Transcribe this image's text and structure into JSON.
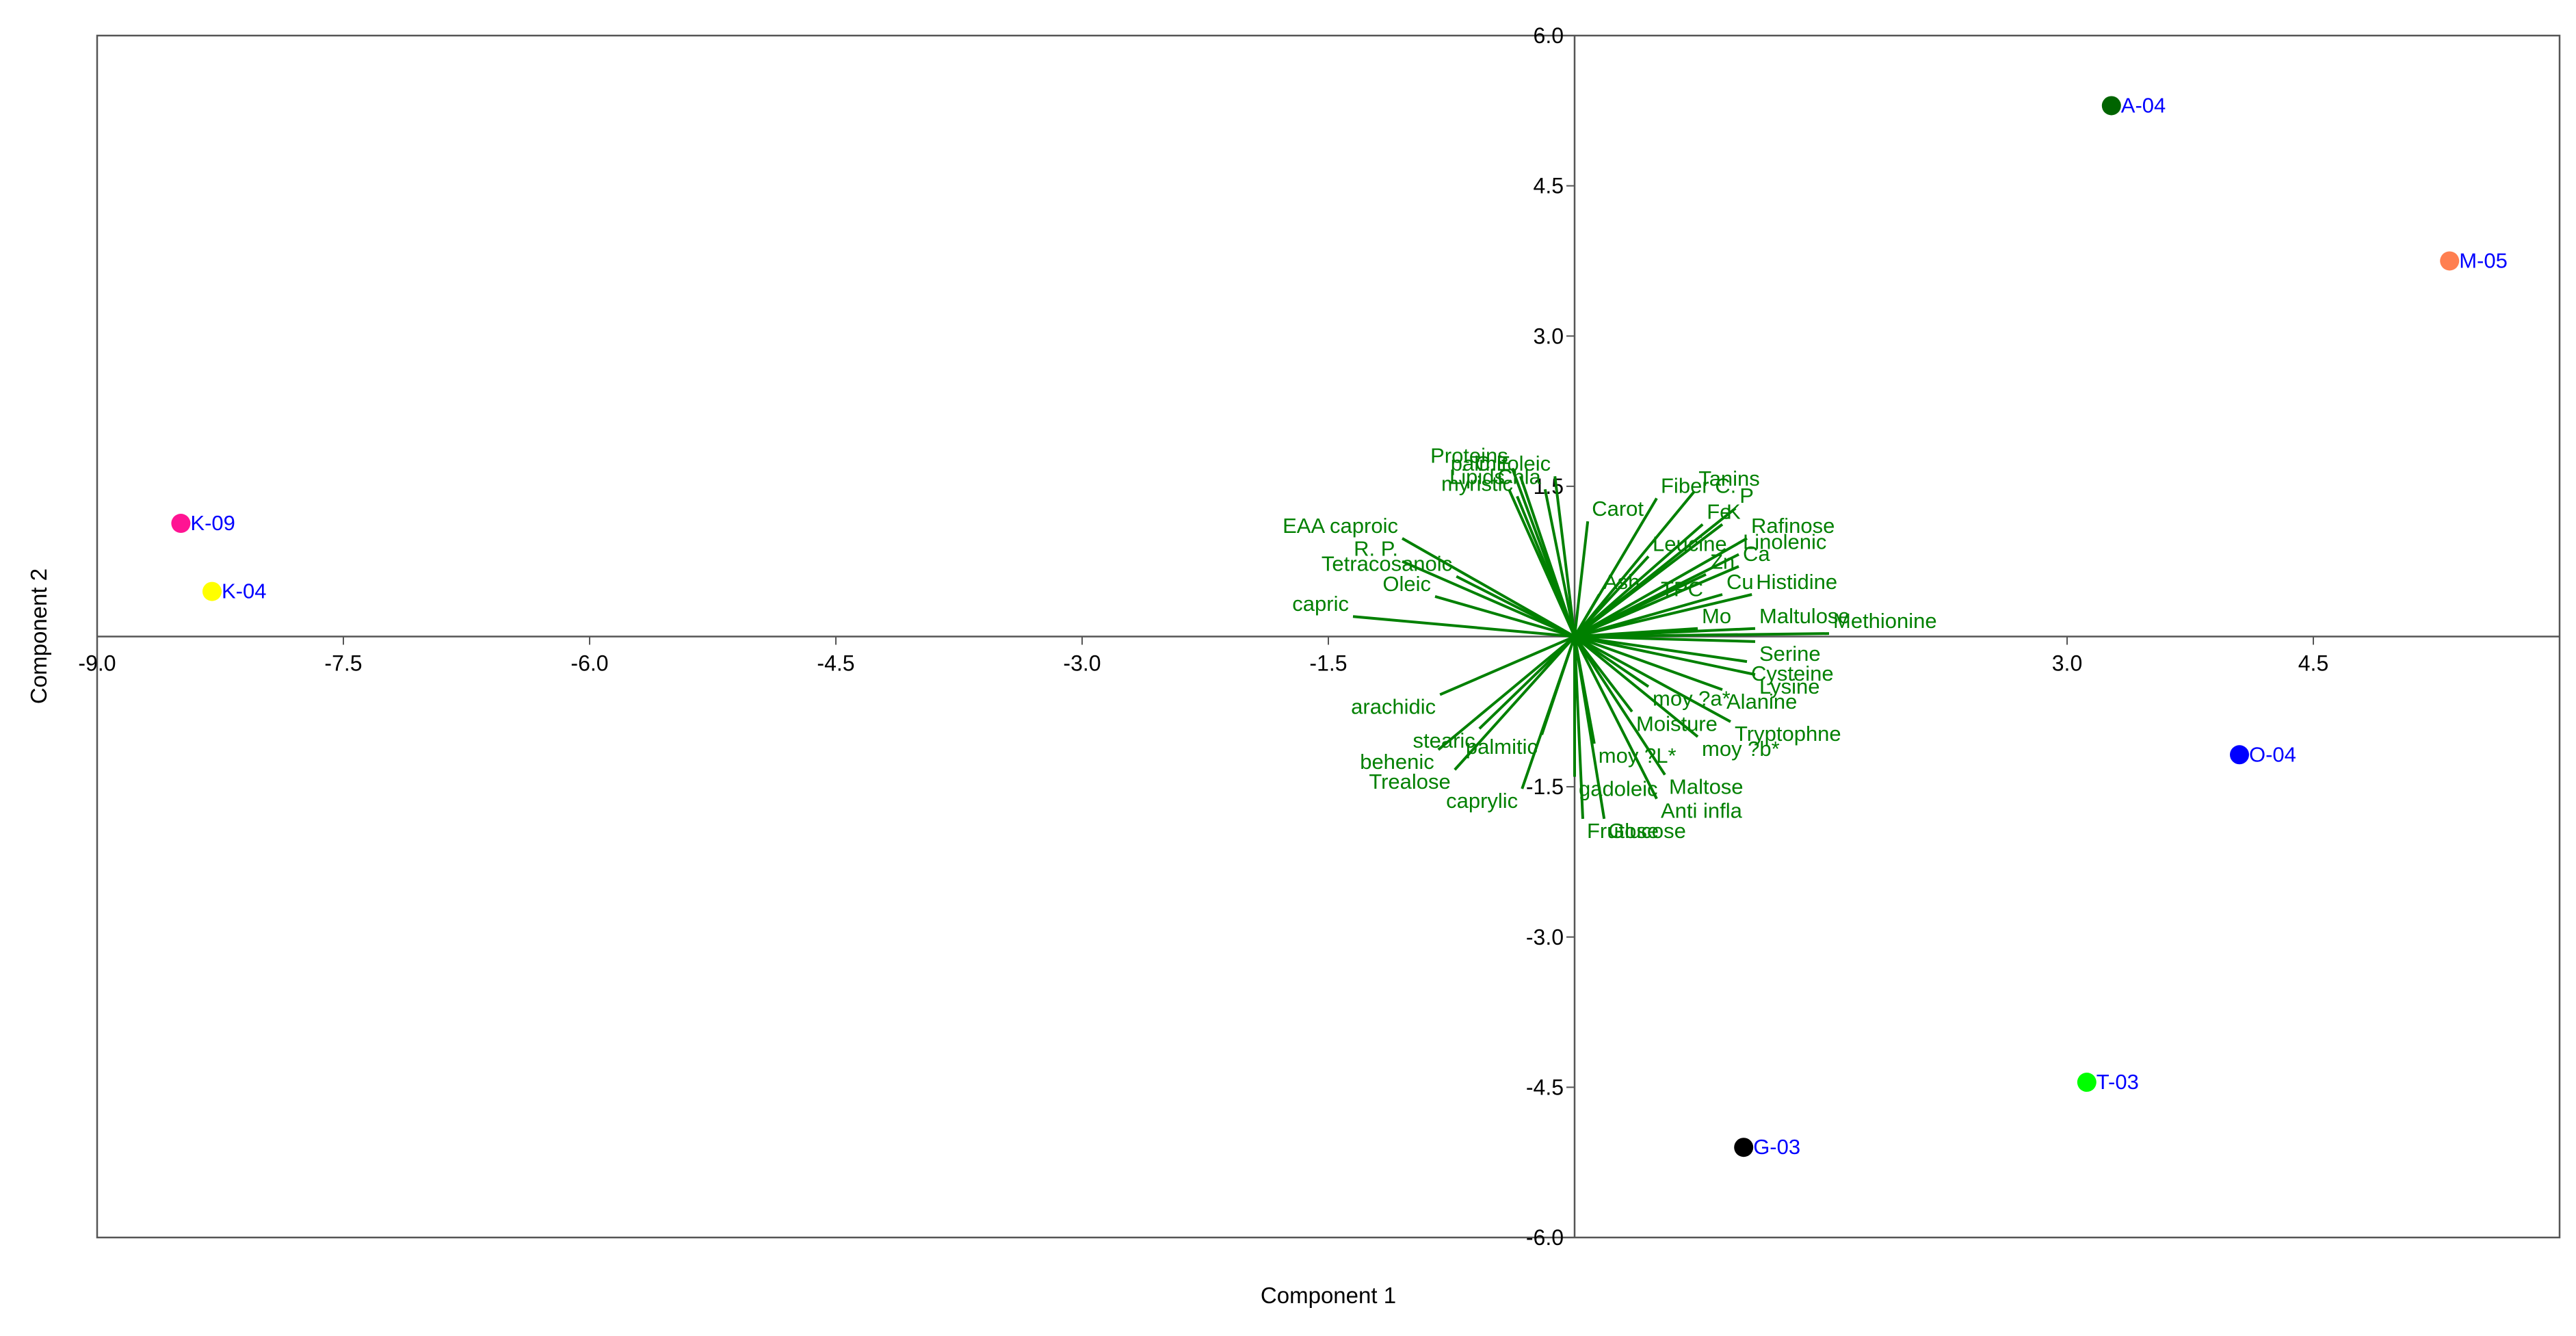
{
  "chart_data": {
    "type": "scatter",
    "subtype": "biplot",
    "xlabel": "Component 1",
    "ylabel": "Component 2",
    "xlim": [
      -9.0,
      6.0
    ],
    "ylim": [
      -6.0,
      6.0
    ],
    "x_ticks": [
      "-9.0",
      "-7.5",
      "-6.0",
      "-4.5",
      "-3.0",
      "-1.5",
      "3.0",
      "4.5"
    ],
    "x_tick_values": [
      -9.0,
      -7.5,
      -6.0,
      -4.5,
      -3.0,
      -1.5,
      3.0,
      4.5
    ],
    "y_ticks": [
      "6.0",
      "4.5",
      "3.0",
      "1.5",
      "-1.5",
      "-3.0",
      "-4.5",
      "-6.0"
    ],
    "y_tick_values": [
      6.0,
      4.5,
      3.0,
      1.5,
      -1.5,
      -3.0,
      -4.5,
      -6.0
    ],
    "grid": false,
    "loading_color": "#008000",
    "point_label_color": "#0000ff",
    "points": [
      {
        "label": "A-04",
        "x": 3.27,
        "y": 5.3,
        "color": "#006400"
      },
      {
        "label": "M-05",
        "x": 5.33,
        "y": 3.75,
        "color": "#ff7f50"
      },
      {
        "label": "K-09",
        "x": -8.49,
        "y": 1.13,
        "color": "#ff1493"
      },
      {
        "label": "K-04",
        "x": -8.3,
        "y": 0.45,
        "color": "#ffff00"
      },
      {
        "label": "O-04",
        "x": 4.05,
        "y": -1.18,
        "color": "#0000ff"
      },
      {
        "label": "T-03",
        "x": 3.12,
        "y": -4.45,
        "color": "#00ff00"
      },
      {
        "label": "G-03",
        "x": 1.03,
        "y": -5.1,
        "color": "#000000"
      }
    ],
    "loadings": [
      {
        "label": "Proteins",
        "x": -0.38,
        "y": 1.68
      },
      {
        "label": "C.E.",
        "x": -0.33,
        "y": 1.6
      },
      {
        "label": "palmitoleic",
        "x": -0.12,
        "y": 1.6
      },
      {
        "label": "Lipids",
        "x": -0.4,
        "y": 1.47
      },
      {
        "label": "Chla",
        "x": -0.18,
        "y": 1.47
      },
      {
        "label": "myristic",
        "x": -0.35,
        "y": 1.4
      },
      {
        "label": "Tanins",
        "x": 0.73,
        "y": 1.45
      },
      {
        "label": "Fiber C.",
        "x": 0.5,
        "y": 1.38
      },
      {
        "label": "P",
        "x": 0.98,
        "y": 1.28
      },
      {
        "label": "Carot",
        "x": 0.08,
        "y": 1.15
      },
      {
        "label": "Fe",
        "x": 0.78,
        "y": 1.12
      },
      {
        "label": "K",
        "x": 0.9,
        "y": 1.12
      },
      {
        "label": "EAA caproic",
        "x": -1.05,
        "y": 0.98
      },
      {
        "label": "Rafinose",
        "x": 1.05,
        "y": 0.98
      },
      {
        "label": "R. P.",
        "x": -1.05,
        "y": 0.75
      },
      {
        "label": "Leucine",
        "x": 0.45,
        "y": 0.8
      },
      {
        "label": "Linolenic",
        "x": 1.0,
        "y": 0.82
      },
      {
        "label": "Tetracosanoic",
        "x": -0.72,
        "y": 0.6
      },
      {
        "label": "Ca",
        "x": 1.0,
        "y": 0.7
      },
      {
        "label": "Zn",
        "x": 0.8,
        "y": 0.62
      },
      {
        "label": "Oleic",
        "x": -0.85,
        "y": 0.4
      },
      {
        "label": "Histidine",
        "x": 1.08,
        "y": 0.42
      },
      {
        "label": "Ash",
        "x": 0.15,
        "y": 0.42
      },
      {
        "label": "Cu",
        "x": 0.9,
        "y": 0.42
      },
      {
        "label": "TPC",
        "x": 0.5,
        "y": 0.35
      },
      {
        "label": "capric",
        "x": -1.35,
        "y": 0.2
      },
      {
        "label": "Mo",
        "x": 0.75,
        "y": 0.08
      },
      {
        "label": "Maltulose",
        "x": 1.1,
        "y": 0.08
      },
      {
        "label": "Methionine",
        "x": 1.55,
        "y": 0.03
      },
      {
        "label": "Serine",
        "x": 1.1,
        "y": -0.05
      },
      {
        "label": "Cysteine",
        "x": 1.05,
        "y": -0.25
      },
      {
        "label": "Lysine",
        "x": 1.1,
        "y": -0.38
      },
      {
        "label": "Alanine",
        "x": 0.9,
        "y": -0.53
      },
      {
        "label": "arachidic",
        "x": -0.82,
        "y": -0.58
      },
      {
        "label": "moy ?a*",
        "x": 0.45,
        "y": -0.5
      },
      {
        "label": "Moisture",
        "x": 0.35,
        "y": -0.75
      },
      {
        "label": "Tryptophne",
        "x": 0.95,
        "y": -0.85
      },
      {
        "label": "stearic",
        "x": -0.58,
        "y": -0.92
      },
      {
        "label": "palmitic",
        "x": -0.2,
        "y": -0.98
      },
      {
        "label": "moy ?L*",
        "x": 0.12,
        "y": -1.07
      },
      {
        "label": "moy ?b*",
        "x": 0.75,
        "y": -1.0
      },
      {
        "label": "behenic",
        "x": -0.83,
        "y": -1.13
      },
      {
        "label": "Trealose",
        "x": -0.73,
        "y": -1.33
      },
      {
        "label": "gadoleic",
        "x": 0.0,
        "y": -1.4
      },
      {
        "label": "Maltose",
        "x": 0.55,
        "y": -1.38
      },
      {
        "label": "caprylic",
        "x": -0.32,
        "y": -1.52
      },
      {
        "label": "Anti infla",
        "x": 0.5,
        "y": -1.62
      },
      {
        "label": "Frutose",
        "x": 0.05,
        "y": -1.82
      },
      {
        "label": "Glucose",
        "x": 0.18,
        "y": -1.82
      }
    ]
  }
}
